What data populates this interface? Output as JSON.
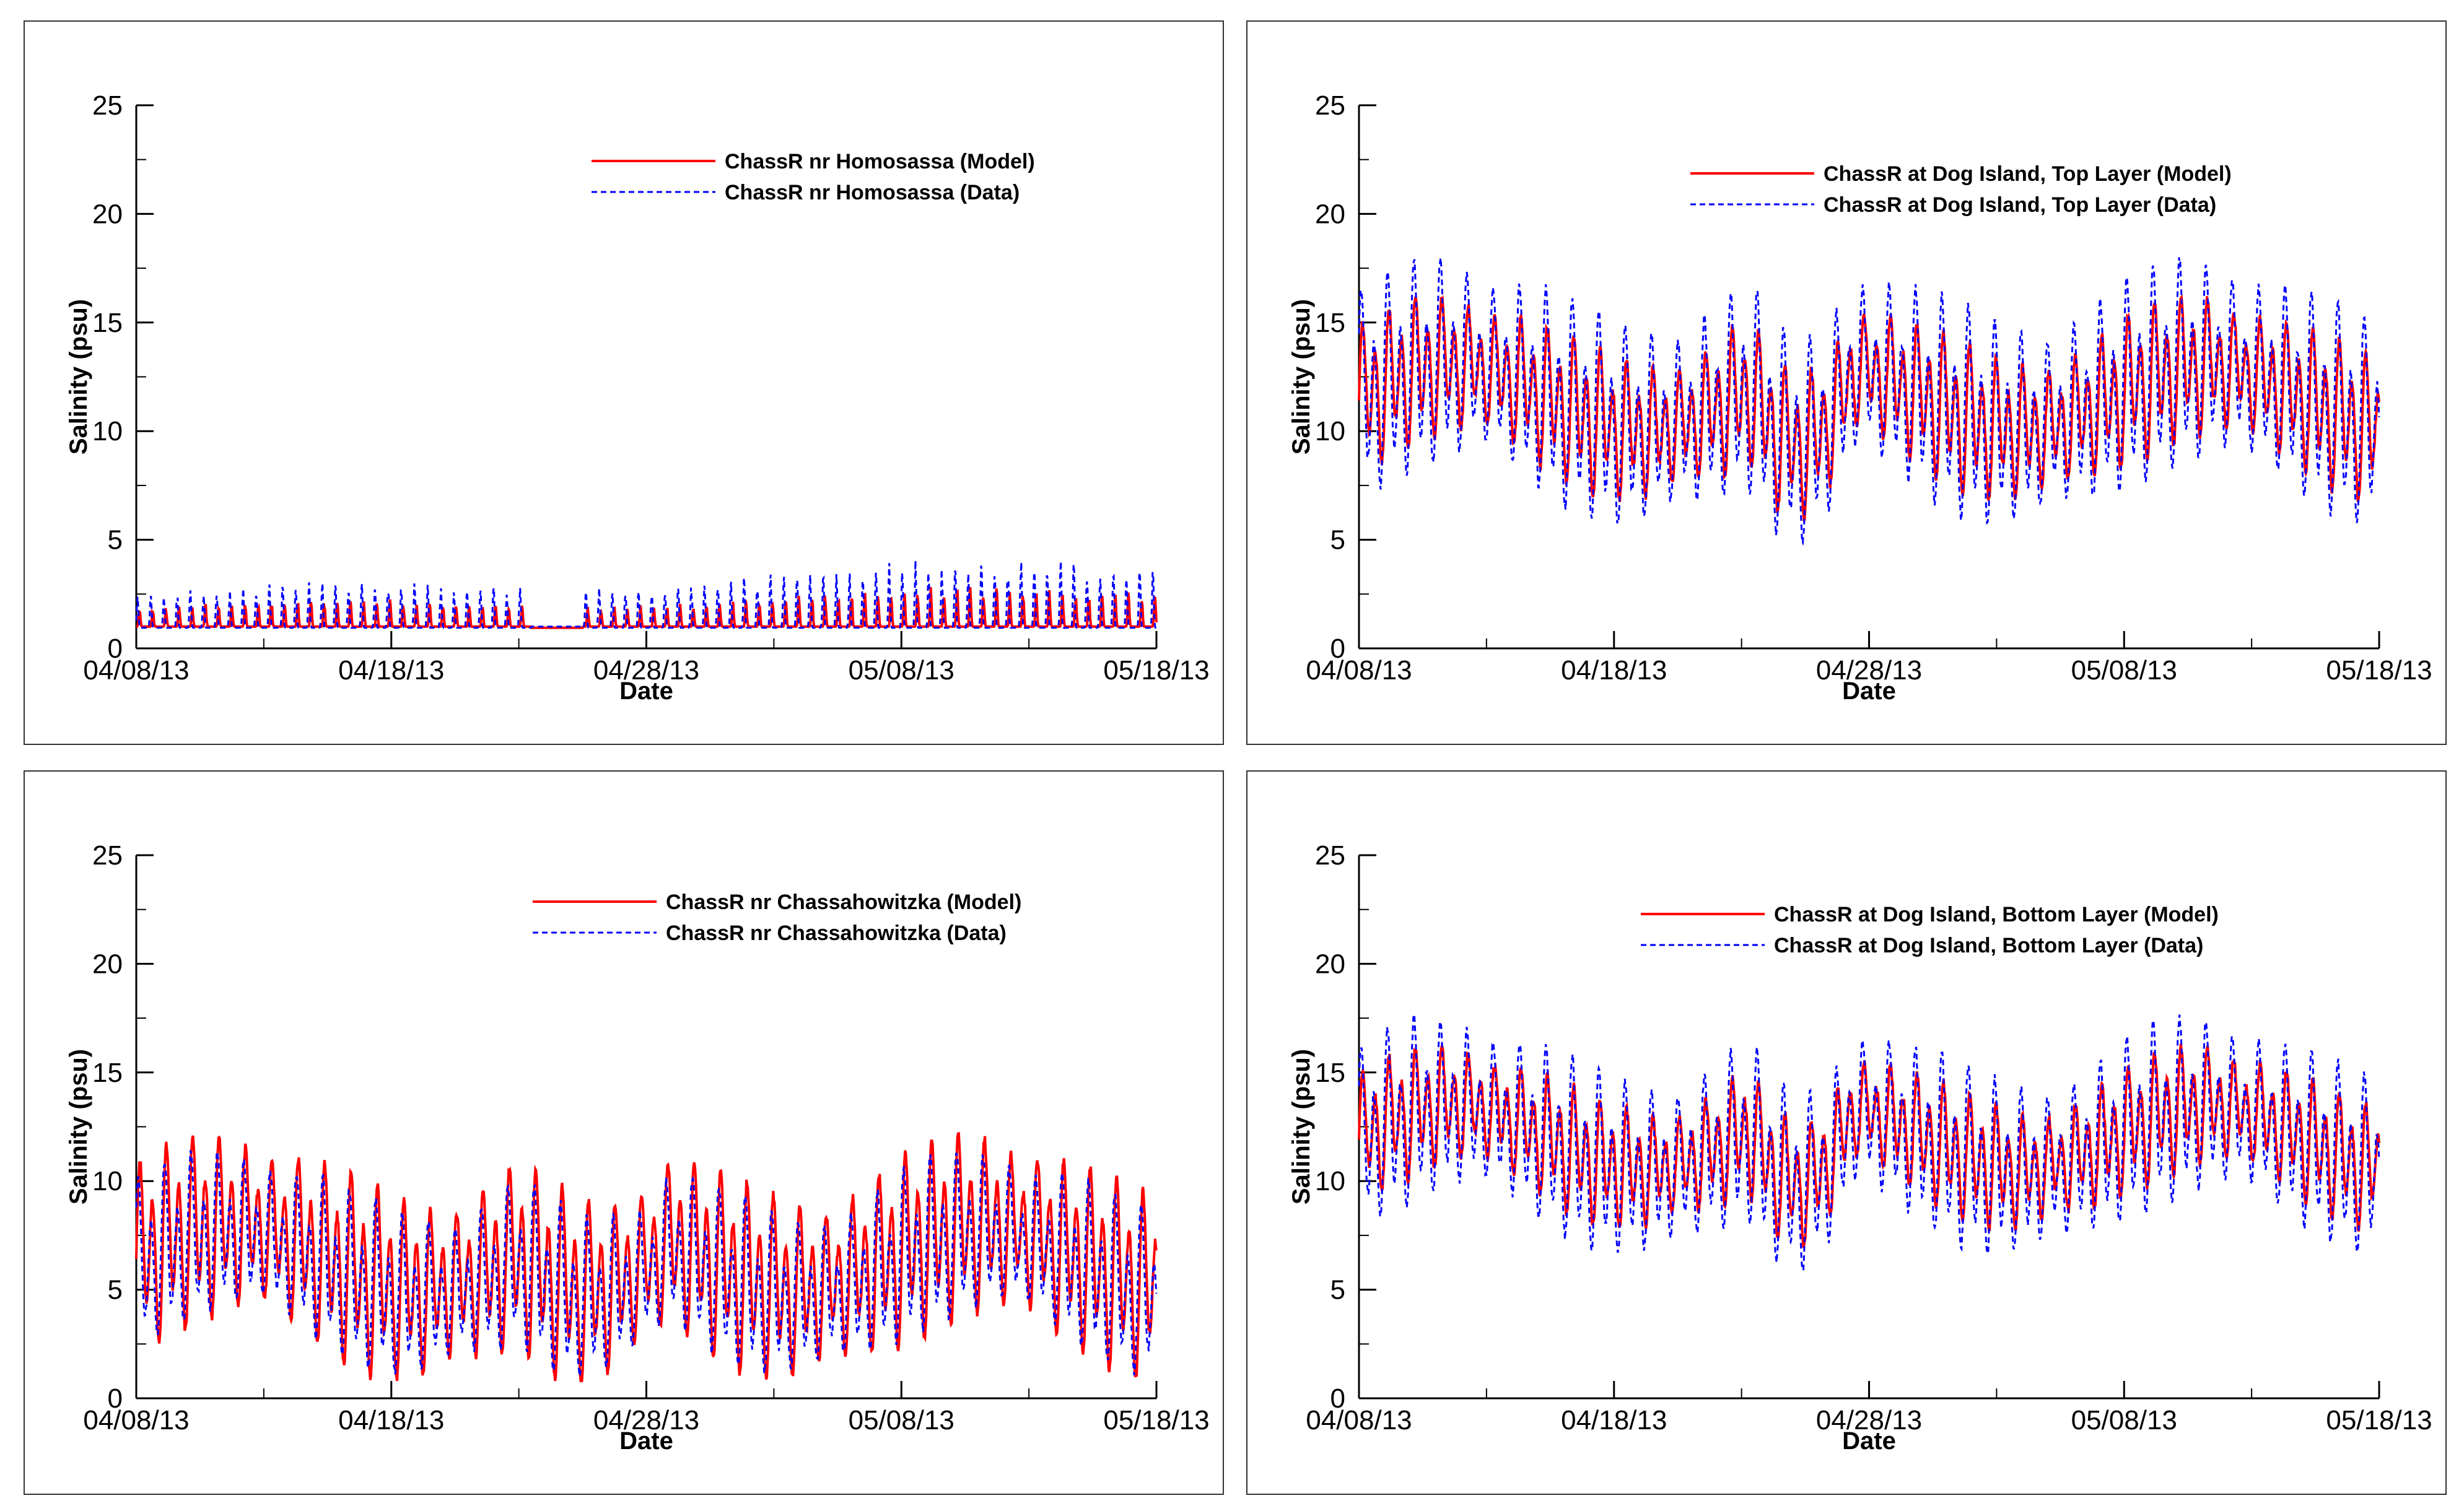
{
  "chart_data": [
    {
      "type": "line",
      "xlabel": "Date",
      "ylabel": "Salinity (psu)",
      "x_ticks": [
        "04/08/13",
        "04/18/13",
        "04/28/13",
        "05/08/13",
        "05/18/13"
      ],
      "y_ticks": [
        "0",
        "5",
        "10",
        "15",
        "20",
        "25"
      ],
      "ylim": [
        0,
        25
      ],
      "x_range_days": [
        0,
        40
      ],
      "legend_position": "top-right",
      "series": [
        {
          "name": "ChassR nr Homosassa (Model)",
          "color": "#ff0000",
          "style": "solid",
          "params": {
            "base": 1.0,
            "amp": 1.2,
            "trend": 1.3,
            "gap": [
              15.5,
              17.5
            ],
            "gap_value": 0.95,
            "phase": 0.0
          }
        },
        {
          "name": "ChassR nr Homosassa (Data)",
          "color": "#0000ff",
          "style": "dashed",
          "params": {
            "base": 0.95,
            "amp": 2.2,
            "trend": 1.6,
            "gap": [
              15.5,
              17.5
            ],
            "gap_value": 1.0,
            "phase": 0.15
          }
        }
      ]
    },
    {
      "type": "line",
      "xlabel": "Date",
      "ylabel": "Salinity (psu)",
      "x_ticks": [
        "04/08/13",
        "04/18/13",
        "04/28/13",
        "05/08/13",
        "05/18/13"
      ],
      "y_ticks": [
        "0",
        "5",
        "10",
        "15",
        "20",
        "25"
      ],
      "ylim": [
        0,
        25
      ],
      "x_range_days": [
        0,
        40
      ],
      "legend_position": "top-right",
      "series": [
        {
          "name": "ChassR at Dog Island, Top Layer (Model)",
          "color": "#ff0000",
          "style": "solid",
          "params": {
            "center": 11.5,
            "amp": 3.5,
            "phase": 0.0
          }
        },
        {
          "name": "ChassR at Dog Island, Top Layer (Data)",
          "color": "#0000ff",
          "style": "dashed",
          "params": {
            "center": 11.5,
            "amp": 5.0,
            "phase": 0.1
          }
        }
      ]
    },
    {
      "type": "line",
      "xlabel": "Date",
      "ylabel": "Salinity (psu)",
      "x_ticks": [
        "04/08/13",
        "04/18/13",
        "04/28/13",
        "05/08/13",
        "05/18/13"
      ],
      "y_ticks": [
        "0",
        "5",
        "10",
        "15",
        "20",
        "25"
      ],
      "ylim": [
        0,
        25
      ],
      "x_range_days": [
        0,
        40
      ],
      "legend_position": "top-right",
      "series": [
        {
          "name": "ChassR nr Chassahowitzka (Model)",
          "color": "#ff0000",
          "style": "solid",
          "params": {
            "center": 6.5,
            "amp": 4.5,
            "phase": 0.0
          }
        },
        {
          "name": "ChassR nr Chassahowitzka (Data)",
          "color": "#0000ff",
          "style": "dashed",
          "params": {
            "center": 6.0,
            "amp": 4.0,
            "phase": 0.12
          }
        }
      ]
    },
    {
      "type": "line",
      "xlabel": "Date",
      "ylabel": "Salinity (psu)",
      "x_ticks": [
        "04/08/13",
        "04/18/13",
        "04/28/13",
        "05/08/13",
        "05/18/13"
      ],
      "y_ticks": [
        "0",
        "5",
        "10",
        "15",
        "20",
        "25"
      ],
      "ylim": [
        0,
        25
      ],
      "x_range_days": [
        0,
        40
      ],
      "legend_position": "top-right",
      "series": [
        {
          "name": "ChassR at Dog Island, Bottom Layer (Model)",
          "color": "#ff0000",
          "style": "solid",
          "params": {
            "center": 12.0,
            "amp": 3.0,
            "phase": 0.0
          }
        },
        {
          "name": "ChassR at Dog Island, Bottom Layer (Data)",
          "color": "#0000ff",
          "style": "dashed",
          "params": {
            "center": 11.8,
            "amp": 4.3,
            "phase": 0.1
          }
        }
      ]
    }
  ]
}
